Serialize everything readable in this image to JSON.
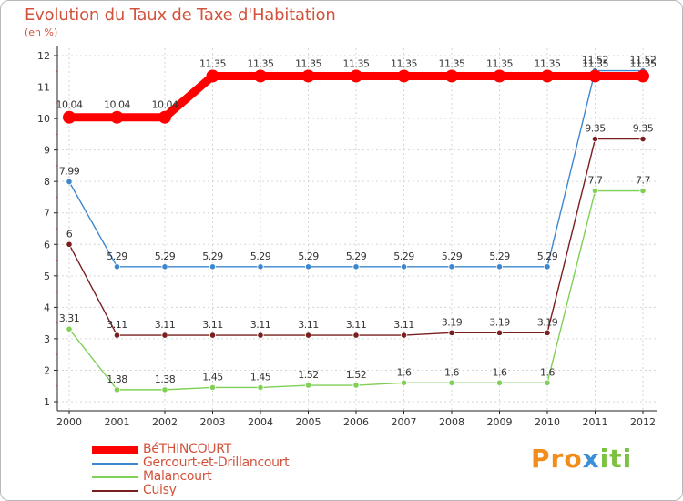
{
  "header": {
    "title": "Evolution du Taux de Taxe d'Habitation",
    "subtitle": "(en %)"
  },
  "logo": {
    "part1": "Pro",
    "part2": "x",
    "part3": "iti"
  },
  "chart_data": {
    "type": "line",
    "title": "Evolution du Taux de Taxe d'Habitation",
    "ylabel": "(en %)",
    "xlabel": "",
    "ylim": [
      1,
      12
    ],
    "yticks": [
      1,
      2,
      3,
      4,
      5,
      6,
      7,
      8,
      9,
      10,
      11,
      12
    ],
    "categories": [
      "2000",
      "2001",
      "2002",
      "2003",
      "2004",
      "2005",
      "2006",
      "2007",
      "2008",
      "2009",
      "2010",
      "2011",
      "2012"
    ],
    "series": [
      {
        "name": "Malancourt",
        "color": "#7fd055",
        "values": [
          3.31,
          1.38,
          1.38,
          1.45,
          1.45,
          1.52,
          1.52,
          1.6,
          1.6,
          1.6,
          1.6,
          7.7,
          7.7
        ],
        "labels": [
          "3.31",
          "1.38",
          "1.38",
          "1.45",
          "1.45",
          "1.52",
          "1.52",
          "1.6",
          "1.6",
          "1.6",
          "1.6",
          "7.7",
          "7.7"
        ]
      },
      {
        "name": "Cuisy",
        "color": "#7a1e1e",
        "values": [
          6,
          3.11,
          3.11,
          3.11,
          3.11,
          3.11,
          3.11,
          3.11,
          3.19,
          3.19,
          3.19,
          9.35,
          9.35
        ],
        "labels": [
          "6",
          "3.11",
          "3.11",
          "3.11",
          "3.11",
          "3.11",
          "3.11",
          "3.11",
          "3.19",
          "3.19",
          "3.19",
          "9.35",
          "9.35"
        ]
      },
      {
        "name": "Gercourt-et-Drillancourt",
        "color": "#3d87d0",
        "values": [
          7.99,
          5.29,
          5.29,
          5.29,
          5.29,
          5.29,
          5.29,
          5.29,
          5.29,
          5.29,
          5.29,
          11.52,
          11.52
        ],
        "labels": [
          "7.99",
          "5.29",
          "5.29",
          "5.29",
          "5.29",
          "5.29",
          "5.29",
          "5.29",
          "5.29",
          "5.29",
          "5.29",
          "11.52",
          "11.52"
        ]
      },
      {
        "name": "BéTHINCOURT",
        "color": "#ff0000",
        "thick": true,
        "values": [
          10.04,
          10.04,
          10.04,
          11.35,
          11.35,
          11.35,
          11.35,
          11.35,
          11.35,
          11.35,
          11.35,
          11.35,
          11.35
        ],
        "labels": [
          "10.04",
          "10.04",
          "10.04",
          "11.35",
          "11.35",
          "11.35",
          "11.35",
          "11.35",
          "11.35",
          "11.35",
          "11.35",
          "11.35",
          "11.35"
        ]
      }
    ],
    "legend": [
      {
        "name": "BéTHINCOURT",
        "color": "#ff0000",
        "thick": true
      },
      {
        "name": "Gercourt-et-Drillancourt",
        "color": "#3d87d0"
      },
      {
        "name": "Malancourt",
        "color": "#7fd055"
      },
      {
        "name": "Cuisy",
        "color": "#7a1e1e"
      }
    ]
  }
}
